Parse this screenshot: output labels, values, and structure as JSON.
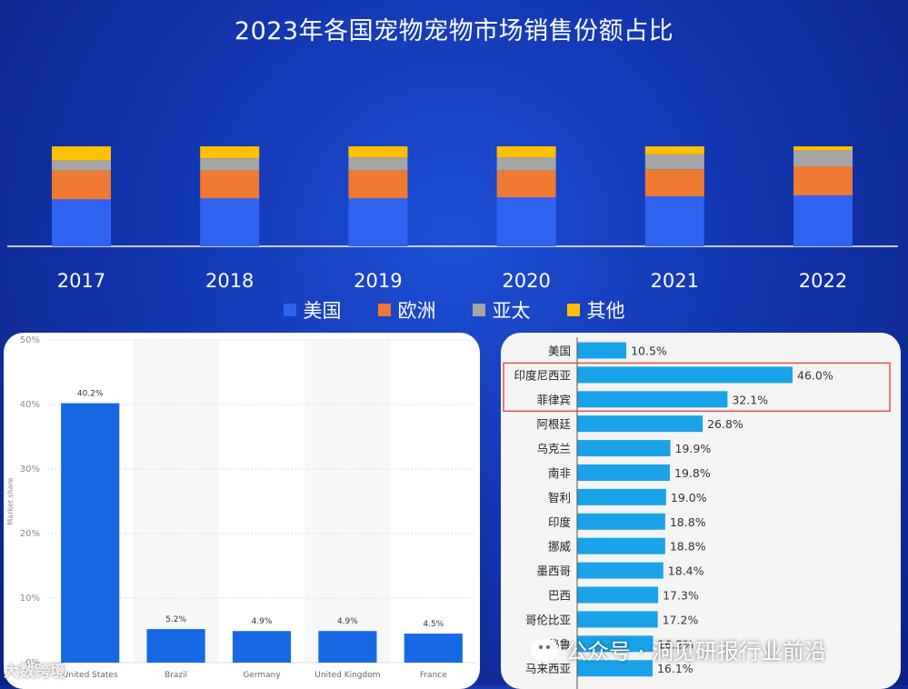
{
  "title": "2023年各国宠物宠物市场销售份额占比",
  "legend": [
    {
      "label": "美国",
      "color": "#2f63f0"
    },
    {
      "label": "欧洲",
      "color": "#ee7a33"
    },
    {
      "label": "亚太",
      "color": "#a5a5a5"
    },
    {
      "label": "其他",
      "color": "#ffc000"
    }
  ],
  "chart_data": [
    {
      "type": "bar",
      "stacked": true,
      "normalized": true,
      "title": "2023年各国宠物宠物市场销售份额占比",
      "categories": [
        "2017",
        "2018",
        "2019",
        "2020",
        "2021",
        "2022"
      ],
      "series": [
        {
          "name": "美国",
          "color": "#2f63f0",
          "values": [
            0.47,
            0.48,
            0.48,
            0.49,
            0.5,
            0.51
          ]
        },
        {
          "name": "欧洲",
          "color": "#ee7a33",
          "values": [
            0.29,
            0.28,
            0.28,
            0.27,
            0.27,
            0.29
          ]
        },
        {
          "name": "亚太",
          "color": "#a5a5a5",
          "values": [
            0.1,
            0.12,
            0.13,
            0.13,
            0.15,
            0.16
          ]
        },
        {
          "name": "其他",
          "color": "#ffc000",
          "values": [
            0.14,
            0.12,
            0.11,
            0.11,
            0.08,
            0.04
          ]
        }
      ],
      "legend_position": "bottom",
      "axes_visible": false
    },
    {
      "type": "bar",
      "ylabel": "Market share",
      "categories": [
        "United States",
        "Brazil",
        "Germany",
        "United Kingdom",
        "France"
      ],
      "values": [
        40.2,
        5.2,
        4.9,
        4.9,
        4.5
      ],
      "data_labels": [
        "40.2%",
        "5.2%",
        "4.9%",
        "4.9%",
        "4.5%"
      ],
      "ylim": [
        0,
        50
      ],
      "yticks": [
        0,
        10,
        20,
        30,
        40,
        50
      ],
      "ytick_labels": [
        "0%",
        "10%",
        "20%",
        "30%",
        "40%",
        "50%"
      ],
      "color": "#1769e3",
      "grid": true
    },
    {
      "type": "bar",
      "orientation": "horizontal",
      "categories": [
        "美国",
        "印度尼西亚",
        "菲律宾",
        "阿根廷",
        "乌克兰",
        "南非",
        "智利",
        "印度",
        "挪威",
        "墨西哥",
        "巴西",
        "哥伦比亚",
        "秘鲁",
        "马来西亚"
      ],
      "values": [
        10.5,
        46.0,
        32.1,
        26.8,
        19.9,
        19.8,
        19.0,
        18.8,
        18.8,
        18.4,
        17.3,
        17.2,
        16.2,
        16.1
      ],
      "data_labels": [
        "10.5%",
        "46.0%",
        "32.1%",
        "26.8%",
        "19.9%",
        "19.8%",
        "19.0%",
        "18.8%",
        "18.8%",
        "18.4%",
        "17.3%",
        "17.2%",
        "16.2%",
        "16.1%"
      ],
      "xlim": [
        0,
        50
      ],
      "color": "#1aa3e8",
      "highlighted_categories": [
        "印度尼西亚",
        "菲律宾"
      ],
      "highlight_color": "#e0514a"
    }
  ],
  "watermarks": {
    "left": "大数跨境",
    "right": "公众号 · 洞见研报行业前沿"
  }
}
